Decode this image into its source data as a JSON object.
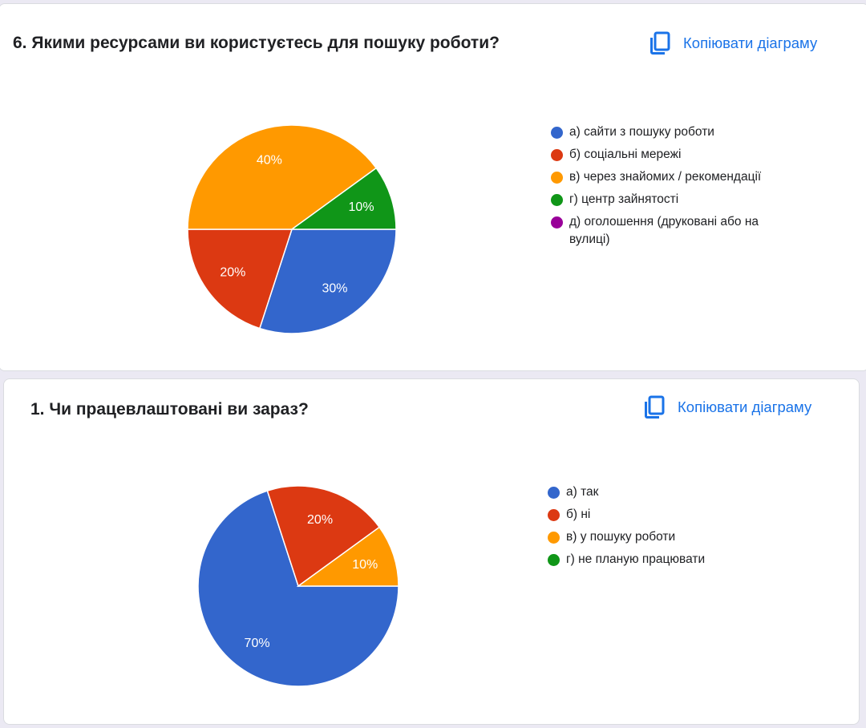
{
  "copy_label": "Копіювати діаграму",
  "cards": [
    {
      "title": "6. Якими ресурсами ви користуєтесь для пошуку роботи?"
    },
    {
      "title": "1. Чи працевлаштовані ви зараз?"
    }
  ],
  "chart_data": [
    {
      "type": "pie",
      "title": "6. Якими ресурсами ви користуєтесь для пошуку роботи?",
      "categories": [
        "а) сайти з пошуку роботи",
        "б) соціальні мережі",
        "в) через знайомих / рекомендації",
        "г) центр зайнятості",
        "д) оголошення (друковані або на вулиці)"
      ],
      "values": [
        30,
        20,
        40,
        10,
        0
      ],
      "labels": [
        "30%",
        "20%",
        "40%",
        "10%",
        ""
      ],
      "colors": [
        "#3366cc",
        "#dc3912",
        "#ff9900",
        "#109618",
        "#990099"
      ],
      "legend": "right"
    },
    {
      "type": "pie",
      "title": "1. Чи працевлаштовані ви зараз?",
      "categories": [
        "а) так",
        "б) ні",
        "в) у пошуку роботи",
        "г) не планую працювати"
      ],
      "values": [
        70,
        20,
        10,
        0
      ],
      "labels": [
        "70%",
        "20%",
        "10%",
        ""
      ],
      "colors": [
        "#3366cc",
        "#dc3912",
        "#ff9900",
        "#109618"
      ],
      "legend": "right"
    }
  ]
}
